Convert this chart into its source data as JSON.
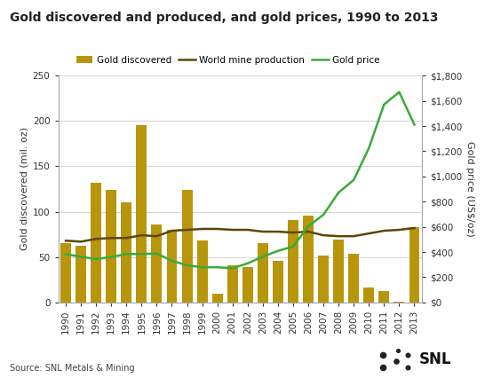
{
  "title": "Gold discovered and produced, and gold prices, 1990 to 2013",
  "years": [
    1990,
    1991,
    1992,
    1993,
    1994,
    1995,
    1996,
    1997,
    1998,
    1999,
    2000,
    2001,
    2002,
    2003,
    2004,
    2005,
    2006,
    2007,
    2008,
    2009,
    2010,
    2011,
    2012,
    2013
  ],
  "gold_discovered": [
    65,
    62,
    132,
    124,
    110,
    195,
    86,
    80,
    124,
    68,
    10,
    41,
    39,
    65,
    46,
    91,
    96,
    52,
    69,
    54,
    16,
    13,
    1,
    83
  ],
  "world_mine_production": [
    68,
    67,
    70,
    71,
    71,
    74,
    73,
    79,
    80,
    81,
    81,
    80,
    80,
    78,
    78,
    77,
    78,
    74,
    73,
    73,
    76,
    79,
    80,
    82
  ],
  "gold_price": [
    383,
    362,
    344,
    360,
    384,
    384,
    388,
    331,
    294,
    279,
    279,
    271,
    310,
    363,
    409,
    444,
    604,
    696,
    872,
    972,
    1225,
    1571,
    1669,
    1411
  ],
  "bar_color": "#b8960c",
  "mine_prod_color": "#5c4800",
  "gold_price_color": "#3aaa3a",
  "ylabel_left": "Gold discovered (mil. oz)",
  "ylabel_right": "Gold price (US$/oz)",
  "ylim_left": [
    0,
    250
  ],
  "ylim_right": [
    0,
    1800
  ],
  "yticks_left": [
    0,
    50,
    100,
    150,
    200,
    250
  ],
  "yticks_right": [
    0,
    200,
    400,
    600,
    800,
    1000,
    1200,
    1400,
    1600,
    1800
  ],
  "ytick_labels_right": [
    "$0",
    "$200",
    "$400",
    "$600",
    "$800",
    "$1,000",
    "$1,200",
    "$1,400",
    "$1,600",
    "$1,800"
  ],
  "source": "Source: SNL Metals & Mining",
  "legend_labels": [
    "Gold discovered",
    "World mine production",
    "Gold price"
  ],
  "background_color": "#ffffff",
  "grid_color": "#cccccc",
  "title_fontsize": 10,
  "axis_fontsize": 8,
  "tick_fontsize": 7.5
}
